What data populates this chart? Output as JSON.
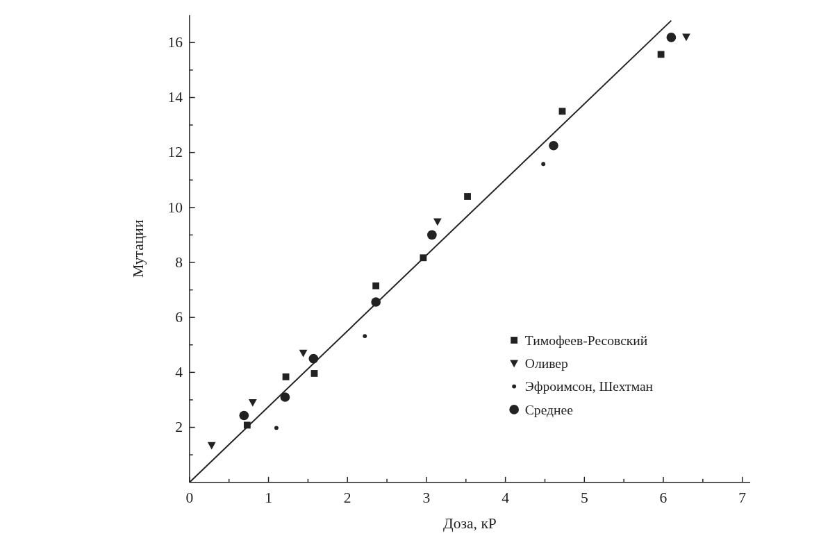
{
  "chart_data": {
    "type": "scatter",
    "xlabel": "Доза, кР",
    "ylabel": "Мутации",
    "xlim": [
      0,
      7.1
    ],
    "ylim": [
      0,
      17
    ],
    "xticks": [
      0,
      {
        "value": 0.5,
        "label": null
      },
      1,
      {
        "value": 1.5,
        "label": null
      },
      2,
      {
        "value": 2.5,
        "label": null
      },
      3,
      {
        "value": 3.5,
        "label": null
      },
      4,
      {
        "value": 4.5,
        "label": null
      },
      5,
      {
        "value": 5.5,
        "label": null
      },
      6,
      {
        "value": 6.5,
        "label": null
      },
      7
    ],
    "yticks": [
      {
        "value": 1,
        "label": null
      },
      2,
      {
        "value": 3,
        "label": null
      },
      4,
      {
        "value": 5,
        "label": null
      },
      6,
      {
        "value": 7,
        "label": null
      },
      8,
      {
        "value": 9,
        "label": null
      },
      10,
      {
        "value": 11,
        "label": null
      },
      12,
      {
        "value": 13,
        "label": null
      },
      14,
      {
        "value": 15,
        "label": null
      },
      16
    ],
    "grid": false,
    "legend": "bottom right",
    "series": [
      {
        "name": "Тимофеев-Ресовский",
        "color": "#222222",
        "marker": "square",
        "x": [
          0.73,
          1.22,
          1.58,
          2.36,
          2.96,
          3.52,
          4.72,
          5.97
        ],
        "values": [
          2.08,
          3.84,
          3.96,
          7.15,
          8.17,
          10.4,
          13.5,
          15.57
        ]
      },
      {
        "name": "Оливер",
        "color": "#222222",
        "marker": "triangle",
        "x": [
          0.28,
          0.8,
          1.44,
          3.14,
          6.29
        ],
        "values": [
          1.34,
          2.9,
          4.7,
          9.48,
          16.2
        ]
      },
      {
        "name": "Эфроимсон, Шехтман",
        "color": "#222222",
        "marker": "dot",
        "x": [
          1.1,
          2.22,
          4.48
        ],
        "values": [
          1.98,
          5.32,
          11.58
        ]
      },
      {
        "name": "Среднее",
        "color": "#222222",
        "marker": "circle",
        "x": [
          0.69,
          1.21,
          1.57,
          2.36,
          3.07,
          4.61,
          6.1
        ],
        "values": [
          2.43,
          3.1,
          4.5,
          6.56,
          9.0,
          12.25,
          16.19
        ]
      },
      {
        "type": "line",
        "color": "#222222",
        "marker": "none",
        "x": [
          0,
          6.1
        ],
        "values": [
          0,
          16.8
        ]
      }
    ]
  }
}
